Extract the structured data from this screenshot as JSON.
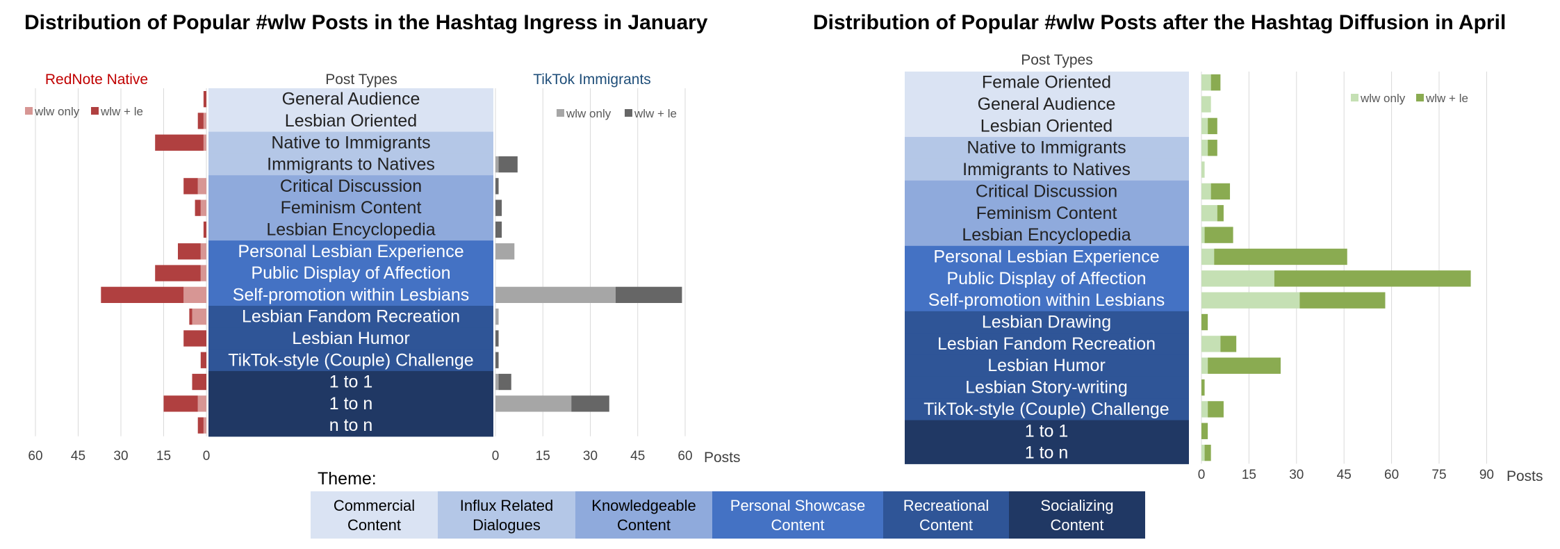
{
  "colors": {
    "theme_commercial": "#dae3f3",
    "theme_influx": "#b4c7e7",
    "theme_knowledge": "#8faadc",
    "theme_showcase": "#4472c4",
    "theme_recreational": "#2f5597",
    "theme_socializing": "#203864",
    "native_light": "#d79694",
    "native_dark": "#b04040",
    "tiktok_light": "#a6a6a6",
    "tiktok_dark": "#666666",
    "april_light": "#c5e0b4",
    "april_dark": "#8aab51",
    "title_native": "#c00000",
    "title_tiktok": "#1f4e79",
    "grid": "#d9d9d9"
  },
  "legend": {
    "title": "Theme:",
    "items": [
      {
        "label1": "Commercial",
        "label2": "Content",
        "theme": "theme_commercial",
        "text": "#000000"
      },
      {
        "label1": "Influx Related",
        "label2": "Dialogues",
        "theme": "theme_influx",
        "text": "#000000"
      },
      {
        "label1": "Knowledgeable",
        "label2": "Content",
        "theme": "theme_knowledge",
        "text": "#000000"
      },
      {
        "label1": "Personal Showcase",
        "label2": "Content",
        "theme": "theme_showcase",
        "text": "#ffffff"
      },
      {
        "label1": "Recreational",
        "label2": "Content",
        "theme": "theme_recreational",
        "text": "#ffffff"
      },
      {
        "label1": "Socializing",
        "label2": "Content",
        "theme": "theme_socializing",
        "text": "#ffffff"
      }
    ]
  },
  "chart_data": [
    {
      "type": "bar",
      "title": "Distribution of Popular #wlw Posts in the Hashtag Ingress in January",
      "center_label": "Post Types",
      "xlabel": "Posts",
      "stacked": true,
      "orientation": "horizontal",
      "categories": [
        "General Audience",
        "Lesbian Oriented",
        "Native to Immigrants",
        "Immigrants to Natives",
        "Critical Discussion",
        "Feminism Content",
        "Lesbian Encyclopedia",
        "Personal Lesbian Experience",
        "Public Display of Affection",
        "Self-promotion within Lesbians",
        "Lesbian Fandom Recreation",
        "Lesbian Humor",
        "TikTok-style (Couple) Challenge",
        "1 to 1",
        "1 to n",
        "n to n"
      ],
      "category_themes": [
        "theme_commercial",
        "theme_commercial",
        "theme_influx",
        "theme_influx",
        "theme_knowledge",
        "theme_knowledge",
        "theme_knowledge",
        "theme_showcase",
        "theme_showcase",
        "theme_showcase",
        "theme_recreational",
        "theme_recreational",
        "theme_recreational",
        "theme_socializing",
        "theme_socializing",
        "theme_socializing"
      ],
      "panels": [
        {
          "name": "RedNote Native",
          "direction": "left",
          "xlim": [
            0,
            60
          ],
          "ticks": [
            60,
            45,
            30,
            15,
            0
          ],
          "legend": [
            "wlw only",
            "wlw + le"
          ],
          "series": [
            {
              "name": "wlw only",
              "values": [
                0,
                1,
                1,
                0,
                3,
                2,
                0,
                2,
                2,
                8,
                5,
                0,
                0,
                0,
                3,
                1
              ]
            },
            {
              "name": "wlw + le",
              "values": [
                1,
                2,
                17,
                0,
                5,
                2,
                1,
                8,
                16,
                29,
                1,
                8,
                2,
                5,
                12,
                2
              ]
            }
          ]
        },
        {
          "name": "TikTok Immigrants",
          "direction": "right",
          "xlim": [
            0,
            60
          ],
          "ticks": [
            0,
            15,
            30,
            45,
            60
          ],
          "legend": [
            "wlw only",
            "wlw + le"
          ],
          "series": [
            {
              "name": "wlw only",
              "values": [
                0,
                0,
                0,
                1,
                0,
                0,
                0,
                6,
                0,
                38,
                1,
                0,
                0,
                1,
                24,
                0
              ]
            },
            {
              "name": "wlw + le",
              "values": [
                0,
                0,
                0,
                6,
                1,
                2,
                2,
                0,
                0,
                21,
                0,
                1,
                1,
                4,
                12,
                0
              ]
            }
          ]
        }
      ]
    },
    {
      "type": "bar",
      "title": "Distribution of Popular #wlw Posts after the Hashtag Diffusion in April",
      "center_label": "Post Types",
      "xlabel": "Posts",
      "stacked": true,
      "orientation": "horizontal",
      "xlim": [
        0,
        90
      ],
      "ticks": [
        0,
        15,
        30,
        45,
        60,
        75,
        90
      ],
      "legend": [
        "wlw only",
        "wlw + le"
      ],
      "categories": [
        "Female Oriented",
        "General Audience",
        "Lesbian Oriented",
        "Native to Immigrants",
        "Immigrants to Natives",
        "Critical Discussion",
        "Feminism Content",
        "Lesbian Encyclopedia",
        "Personal Lesbian Experience",
        "Public Display of Affection",
        "Self-promotion within Lesbians",
        "Lesbian Drawing",
        "Lesbian Fandom Recreation",
        "Lesbian Humor",
        "Lesbian Story-writing",
        "TikTok-style (Couple) Challenge",
        "1 to 1",
        "1 to n"
      ],
      "category_themes": [
        "theme_commercial",
        "theme_commercial",
        "theme_commercial",
        "theme_influx",
        "theme_influx",
        "theme_knowledge",
        "theme_knowledge",
        "theme_knowledge",
        "theme_showcase",
        "theme_showcase",
        "theme_showcase",
        "theme_recreational",
        "theme_recreational",
        "theme_recreational",
        "theme_recreational",
        "theme_recreational",
        "theme_socializing",
        "theme_socializing"
      ],
      "series": [
        {
          "name": "wlw only",
          "values": [
            3,
            3,
            2,
            2,
            1,
            3,
            5,
            1,
            4,
            23,
            31,
            0,
            6,
            2,
            0,
            2,
            0,
            1
          ]
        },
        {
          "name": "wlw + le",
          "values": [
            3,
            0,
            3,
            3,
            0,
            6,
            2,
            9,
            42,
            62,
            27,
            2,
            5,
            23,
            1,
            5,
            2,
            2
          ]
        }
      ]
    }
  ]
}
